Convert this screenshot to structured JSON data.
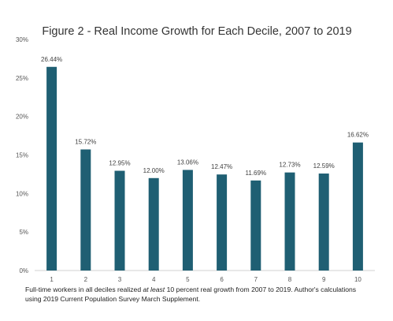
{
  "chart_data": {
    "type": "bar",
    "title": "Figure 2 - Real Income Growth for Each Decile, 2007 to 2019",
    "categories": [
      "1",
      "2",
      "3",
      "4",
      "5",
      "6",
      "7",
      "8",
      "9",
      "10"
    ],
    "values": [
      26.44,
      15.72,
      12.95,
      12.0,
      13.06,
      12.47,
      11.69,
      12.73,
      12.59,
      16.62
    ],
    "data_labels": [
      "26.44%",
      "15.72%",
      "12.95%",
      "12.00%",
      "13.06%",
      "12.47%",
      "11.69%",
      "12.73%",
      "12.59%",
      "16.62%"
    ],
    "ylim": [
      0,
      30
    ],
    "y_ticks": [
      0,
      5,
      10,
      15,
      20,
      25,
      30
    ],
    "y_tick_labels": [
      "0%",
      "5%",
      "10%",
      "15%",
      "20%",
      "25%",
      "30%"
    ],
    "grid": false,
    "bar_color": "#1f5f73"
  },
  "note": {
    "part1": "Full-time workers  in all deciles realized ",
    "emphasis": "at least",
    "part2": " 10 percent real growth from 2007 to 2019. Author's calculations using 2019 Current Population Survey March Supplement."
  }
}
